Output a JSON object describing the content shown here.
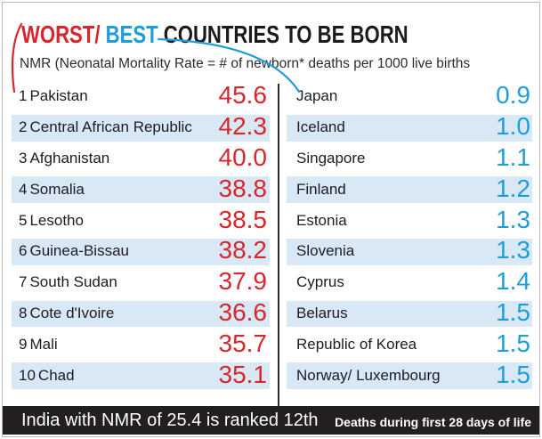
{
  "colors": {
    "worst": "#d8262c",
    "best": "#1f9dd9",
    "band": "#d9e8f5",
    "footer": "#231f20"
  },
  "chart_data": {
    "type": "table",
    "title": {
      "worst": "WORST/",
      "best": "BEST",
      "rest": "COUNTRIES TO BE BORN"
    },
    "subtitle": "NMR (Neonatal Mortality Rate = # of newborn* deaths per 1000 live births",
    "worst": [
      {
        "rank": 1,
        "country": "Pakistan",
        "nmr": 45.6
      },
      {
        "rank": 2,
        "country": "Central African Republic",
        "nmr": 42.3
      },
      {
        "rank": 3,
        "country": "Afghanistan",
        "nmr": 40.0
      },
      {
        "rank": 4,
        "country": "Somalia",
        "nmr": 38.8
      },
      {
        "rank": 5,
        "country": "Lesotho",
        "nmr": 38.5
      },
      {
        "rank": 6,
        "country": "Guinea-Bissau",
        "nmr": 38.2
      },
      {
        "rank": 7,
        "country": "South Sudan",
        "nmr": 37.9
      },
      {
        "rank": 8,
        "country": "Cote d'Ivoire",
        "nmr": 36.6
      },
      {
        "rank": 9,
        "country": "Mali",
        "nmr": 35.7
      },
      {
        "rank": 10,
        "country": "Chad",
        "nmr": 35.1
      }
    ],
    "best": [
      {
        "country": "Japan",
        "nmr": 0.9
      },
      {
        "country": "Iceland",
        "nmr": 1.0
      },
      {
        "country": "Singapore",
        "nmr": 1.1
      },
      {
        "country": "Finland",
        "nmr": 1.2
      },
      {
        "country": "Estonia",
        "nmr": 1.3
      },
      {
        "country": "Slovenia",
        "nmr": 1.3
      },
      {
        "country": "Cyprus",
        "nmr": 1.4
      },
      {
        "country": "Belarus",
        "nmr": 1.5
      },
      {
        "country": "Republic of Korea",
        "nmr": 1.5
      },
      {
        "country": "Norway/ Luxembourg",
        "nmr": 1.5
      }
    ],
    "footer": {
      "india": "India with NMR of 25.4 is ranked 12th",
      "definition": "Deaths during first 28 days of life"
    }
  }
}
